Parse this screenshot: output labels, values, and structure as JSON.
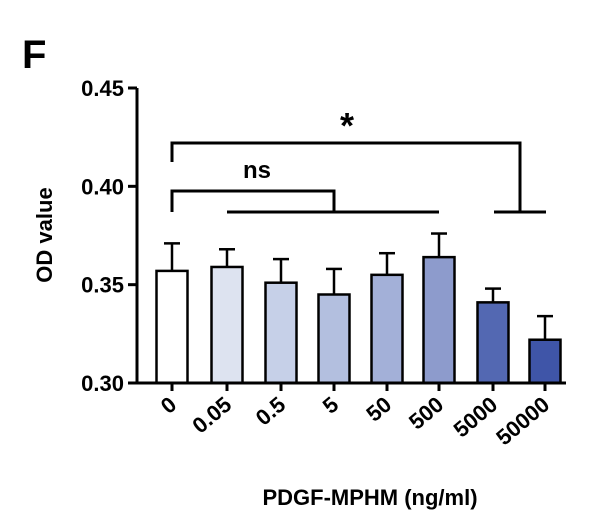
{
  "panel_label": "F",
  "chart_data": {
    "type": "bar",
    "title": "",
    "xlabel": "PDGF-MPHM (ng/ml)",
    "ylabel": "OD value",
    "ylim": [
      0.3,
      0.45
    ],
    "yticks": [
      0.3,
      0.35,
      0.4,
      0.45
    ],
    "ytick_labels": [
      "0.30",
      "0.35",
      "0.40",
      "0.45"
    ],
    "categories": [
      "0",
      "0.05",
      "0.5",
      "5",
      "50",
      "500",
      "5000",
      "50000"
    ],
    "values": [
      0.357,
      0.359,
      0.351,
      0.345,
      0.355,
      0.364,
      0.341,
      0.322
    ],
    "error": [
      0.014,
      0.009,
      0.012,
      0.013,
      0.011,
      0.012,
      0.007,
      0.012
    ],
    "bar_colors": [
      "#ffffff",
      "#dde3f0",
      "#c6d0e8",
      "#b3bfdf",
      "#a3b0d8",
      "#8d9bcc",
      "#5368b2",
      "#3f55a8"
    ],
    "grid": false,
    "annotations": [
      {
        "label": "ns",
        "from": "0",
        "to": [
          "0.05",
          "0.5",
          "5",
          "50",
          "500"
        ]
      },
      {
        "label": "*",
        "from": "0",
        "to": [
          "5000",
          "50000"
        ]
      }
    ]
  }
}
